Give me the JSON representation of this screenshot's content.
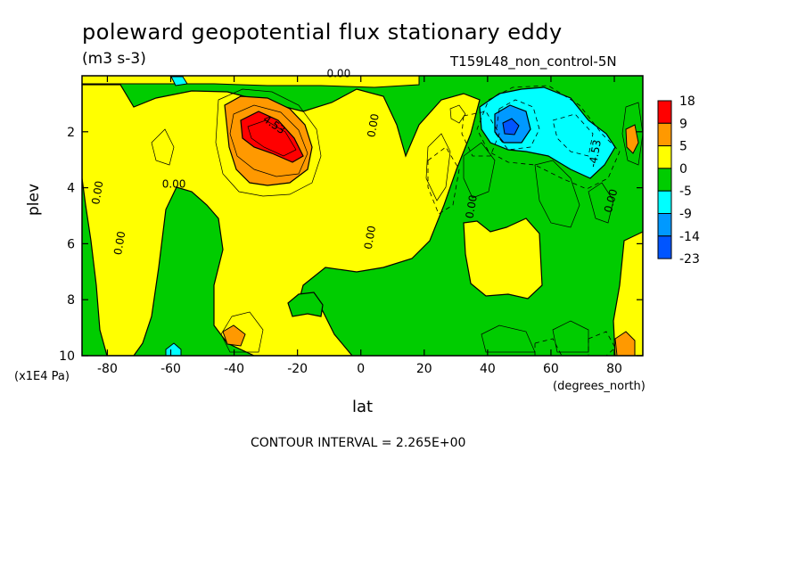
{
  "title": "poleward geopotential flux stationary eddy",
  "units": "(m3 s-3)",
  "run_label": "T159L48_non_control-5N",
  "ylabel": "plev",
  "yunits": "(x1E4 Pa)",
  "xlabel": "lat",
  "xunits": "(degrees_north)",
  "contour_interval": "CONTOUR INTERVAL = 2.265E+00",
  "chart_data": {
    "type": "contour",
    "title": "poleward geopotential flux stationary eddy",
    "subtitle": "(m3 s-3)",
    "xlabel": "lat",
    "xunits": "(degrees_north)",
    "ylabel": "plev",
    "yunits": "(x1E4 Pa)",
    "xlim": [
      -88,
      89
    ],
    "ylim": [
      10,
      0
    ],
    "xticks": [
      -80,
      -60,
      -40,
      -20,
      0,
      20,
      40,
      60,
      80
    ],
    "yticks": [
      2,
      4,
      6,
      8,
      10
    ],
    "legend": {
      "placement": "right",
      "labels": [
        "18",
        "9",
        "5",
        "0",
        "-5",
        "-9",
        "-14",
        "-23"
      ],
      "colors": [
        "#ff0000",
        "#ff9900",
        "#ffff00",
        "#00cc00",
        "#00ffff",
        "#0099ff",
        "#0055ff"
      ]
    },
    "contour_labels": [
      {
        "text": "0.00",
        "x": -82,
        "y": 4.2,
        "rotate": -80
      },
      {
        "text": "0.00",
        "x": -75,
        "y": 6.0,
        "rotate": -80
      },
      {
        "text": "0.00",
        "x": -59,
        "y": 4.0,
        "rotate": 0
      },
      {
        "text": "4.53",
        "x": -28,
        "y": 1.85,
        "rotate": 35
      },
      {
        "text": "0.00",
        "x": -7,
        "y": 0.05,
        "rotate": 0
      },
      {
        "text": "0.00",
        "x": 5,
        "y": 1.8,
        "rotate": -80
      },
      {
        "text": "0.00",
        "x": 4,
        "y": 5.8,
        "rotate": -80
      },
      {
        "text": "0.00",
        "x": 36,
        "y": 4.7,
        "rotate": -80
      },
      {
        "text": "-4.53",
        "x": 75,
        "y": 2.8,
        "rotate": -80
      },
      {
        "text": "0.00",
        "x": 80,
        "y": 4.5,
        "rotate": -75
      }
    ]
  }
}
